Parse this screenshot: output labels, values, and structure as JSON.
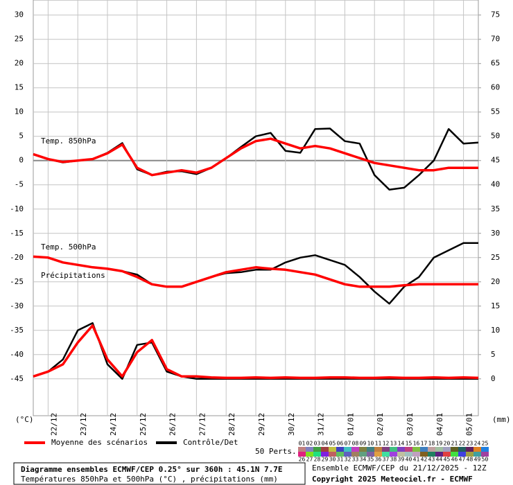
{
  "chart_data": {
    "type": "line",
    "title": "Diagramme ensembles ECMWF/CEP 0.25° sur 360h : 45.1N 7.7E",
    "subtitle": "Températures 850hPa et 500hPa (°C) , précipitations (mm)",
    "run": "Ensemble ECMWF/CEP du 21/12/2025 - 12Z",
    "copyright": "Copyright 2025 Meteociel.fr - ECMWF",
    "y_label": "(°C)",
    "y2_label": "(mm)",
    "annotations": [
      "Temp. 850hPa",
      "Temp. 500hPa",
      "Précipitations"
    ],
    "xlim": [
      0,
      360
    ],
    "xticks": [
      {
        "value": 12,
        "label": "22/12"
      },
      {
        "value": 36,
        "label": "23/12"
      },
      {
        "value": 60,
        "label": "24/12"
      },
      {
        "value": 84,
        "label": "25/12"
      },
      {
        "value": 108,
        "label": "26/12"
      },
      {
        "value": 132,
        "label": "27/12"
      },
      {
        "value": 156,
        "label": "28/12"
      },
      {
        "value": 180,
        "label": "29/12"
      },
      {
        "value": 204,
        "label": "30/12"
      },
      {
        "value": 228,
        "label": "31/12"
      },
      {
        "value": 252,
        "label": "01/01"
      },
      {
        "value": 276,
        "label": "02/01"
      },
      {
        "value": 300,
        "label": "03/01"
      },
      {
        "value": 324,
        "label": "04/01"
      },
      {
        "value": 348,
        "label": "05/01"
      }
    ],
    "ylim": [
      -52.6,
      33.1
    ],
    "yticks": [
      30,
      25,
      20,
      15,
      10,
      5,
      0,
      -5,
      -10,
      -15,
      -20,
      -25,
      -30,
      -35,
      -40,
      -45
    ],
    "y2lim": [
      -7.6,
      78.1
    ],
    "y2ticks": [
      75,
      70,
      65,
      60,
      55,
      50,
      45,
      40,
      35,
      30,
      25,
      20,
      15,
      10,
      5,
      0
    ],
    "grid": true,
    "x": [
      0,
      12,
      24,
      36,
      48,
      60,
      72,
      84,
      96,
      108,
      120,
      132,
      144,
      156,
      168,
      180,
      192,
      204,
      216,
      228,
      240,
      252,
      264,
      276,
      288,
      300,
      312,
      324,
      336,
      348,
      360
    ],
    "series": [
      {
        "name": "Moyenne des scénarios",
        "color": "#ff0000",
        "values": [
          1.3,
          0.3,
          -0.3,
          0,
          0.3,
          1.5,
          3.3,
          -1.5,
          -3,
          -2.5,
          -2,
          -2.5,
          -1.5,
          0.5,
          2.5,
          4,
          4.5,
          3.5,
          2.5,
          3,
          2.5,
          1.5,
          0.5,
          -0.5,
          -1,
          -1.5,
          -2,
          -2,
          -1.5,
          -1.5,
          -1.5
        ]
      },
      {
        "name": "Contrôle/Det",
        "color": "#000000",
        "values": [
          1.3,
          0.3,
          -0.4,
          0,
          0.3,
          1.6,
          3.6,
          -1.8,
          -3,
          -2.3,
          -2.2,
          -2.8,
          -1.5,
          0.5,
          2.8,
          5,
          5.7,
          2,
          1.6,
          6.5,
          6.6,
          4,
          3.5,
          -3,
          -6,
          -5.6,
          -3,
          0,
          6.5,
          3.5,
          3.7
        ]
      },
      {
        "name": "Moyenne des scénarios",
        "color": "#ff0000",
        "values": [
          -19.8,
          -20,
          -21,
          -21.5,
          -22,
          -22.3,
          -22.8,
          -24,
          -25.5,
          -26,
          -26,
          -25,
          -24,
          -23,
          -22.5,
          -22,
          -22.3,
          -22.5,
          -23,
          -23.5,
          -24.5,
          -25.5,
          -26,
          -26,
          -26,
          -25.7,
          -25.5,
          -25.5,
          -25.5,
          -25.5,
          -25.5
        ]
      },
      {
        "name": "Contrôle/Det",
        "color": "#000000",
        "values": [
          -19.8,
          -20,
          -21,
          -21.5,
          -22,
          -22.3,
          -22.8,
          -23.5,
          -25.5,
          -26,
          -26,
          -25,
          -24,
          -23.2,
          -23,
          -22.5,
          -22.5,
          -21,
          -20,
          -19.5,
          -20.5,
          -21.5,
          -24,
          -27,
          -29.5,
          -26,
          -24,
          -20,
          -18.5,
          -17,
          -17
        ]
      },
      {
        "name": "Moyenne des scénarios",
        "color": "#ff0000",
        "axis": "y2",
        "values": [
          0.5,
          1.5,
          3,
          7.5,
          11,
          4,
          0.5,
          5.5,
          8,
          2,
          0.5,
          0.5,
          0.3,
          0.2,
          0.2,
          0.3,
          0.2,
          0.3,
          0.2,
          0.2,
          0.3,
          0.3,
          0.2,
          0.2,
          0.3,
          0.2,
          0.2,
          0.3,
          0.2,
          0.3,
          0.2
        ]
      },
      {
        "name": "Contrôle/Det",
        "color": "#000000",
        "axis": "y2",
        "values": [
          0.5,
          1.5,
          4,
          10,
          11.5,
          3,
          0,
          7,
          7.5,
          1.5,
          0.5,
          0,
          0,
          0,
          0,
          0,
          0,
          0,
          0,
          0,
          0,
          0,
          0,
          0,
          0,
          0,
          0,
          0,
          0,
          0,
          0
        ]
      }
    ],
    "perts_label": "50 Perts.",
    "perts": [
      "01",
      "02",
      "03",
      "04",
      "05",
      "06",
      "07",
      "08",
      "09",
      "10",
      "11",
      "12",
      "13",
      "14",
      "15",
      "16",
      "17",
      "18",
      "19",
      "20",
      "21",
      "22",
      "23",
      "24",
      "25",
      "26",
      "27",
      "28",
      "29",
      "30",
      "31",
      "32",
      "33",
      "34",
      "35",
      "36",
      "37",
      "38",
      "39",
      "40",
      "41",
      "42",
      "43",
      "44",
      "45",
      "46",
      "47",
      "48",
      "49",
      "50"
    ],
    "pert_colors": [
      "#c08080",
      "#8080c0",
      "#40a040",
      "#a04040",
      "#c0c040",
      "#4040c0",
      "#40c0c0",
      "#c040c0",
      "#808040",
      "#408080",
      "#c08040",
      "#804080",
      "#40c080",
      "#8040c0",
      "#c04080",
      "#80c040",
      "#4080c0",
      "#c0a0a0",
      "#a0c0a0",
      "#a0a0c0",
      "#606020",
      "#206060",
      "#602060",
      "#e08020",
      "#2080e0",
      "#e02080",
      "#80e020",
      "#20e080",
      "#8020e0",
      "#c06060",
      "#60c060",
      "#6060c0",
      "#a08060",
      "#60a080",
      "#8060a0",
      "#e0a040",
      "#40e0a0",
      "#a040e0",
      "#c0c0a0",
      "#a0c0c0",
      "#c0a0c0",
      "#806020",
      "#208060",
      "#602080",
      "#e04040",
      "#40e040",
      "#4040e0",
      "#a0a040",
      "#40a0a0",
      "#a040a0"
    ]
  }
}
